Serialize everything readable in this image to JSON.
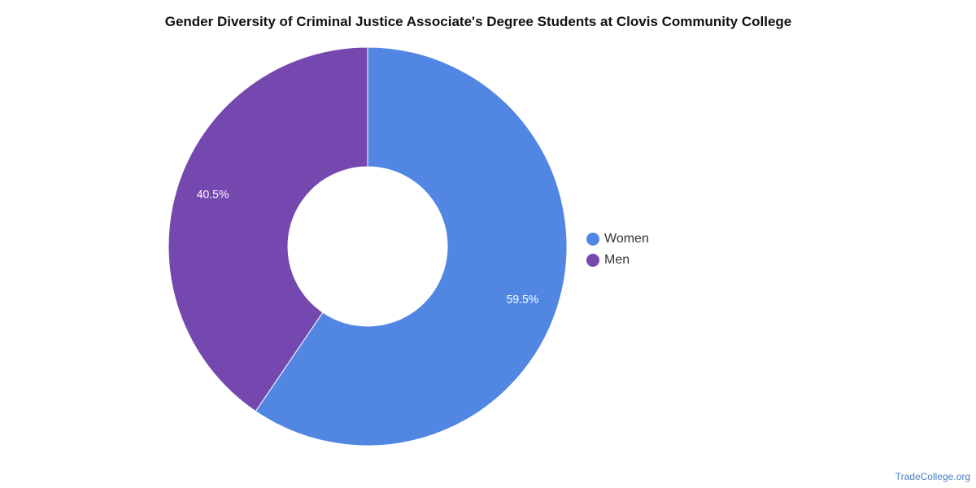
{
  "chart_data": {
    "type": "pie",
    "title": "Gender Diversity of Criminal Justice Associate's Degree Students at Clovis Community College",
    "categories": [
      "Women",
      "Men"
    ],
    "values": [
      59.5,
      40.5
    ],
    "value_labels": [
      "59.5%",
      "40.5%"
    ],
    "colors": [
      "#5286e3",
      "#7548b0"
    ],
    "donut": true,
    "legend_position": "right"
  },
  "footer": {
    "source": "TradeCollege.org"
  }
}
